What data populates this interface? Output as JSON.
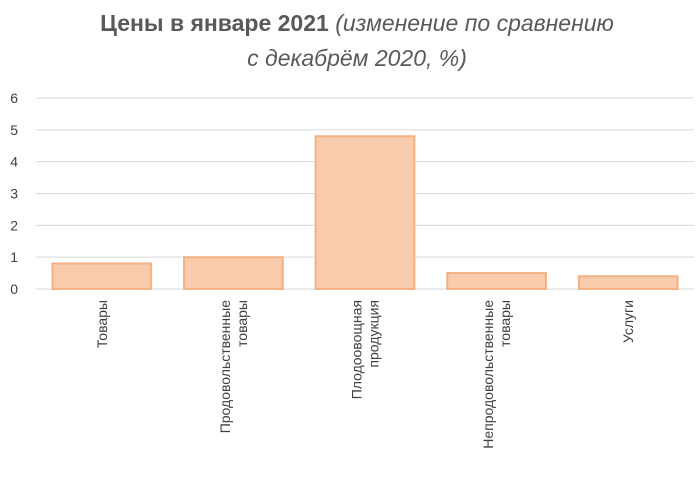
{
  "chart_data": {
    "type": "bar",
    "title": "Цены в январе 2021",
    "subtitle_line1": "(изменение по сравнению",
    "subtitle_line2": "с декабрём 2020, %)",
    "categories": [
      [
        "Товары"
      ],
      [
        "Продовольственные",
        "товары"
      ],
      [
        "Плодоовощная",
        "продукция"
      ],
      [
        "Непродовольственные",
        "товары"
      ],
      [
        "Услуги"
      ]
    ],
    "values": [
      0.8,
      1.0,
      4.8,
      0.5,
      0.4
    ],
    "ylim": [
      0,
      6
    ],
    "yticks": [
      "0",
      "1",
      "2",
      "3",
      "4",
      "5",
      "6"
    ],
    "grid": true,
    "legend": "none",
    "bar_fill": "#f8cbad",
    "bar_stroke": "#f4b183"
  }
}
